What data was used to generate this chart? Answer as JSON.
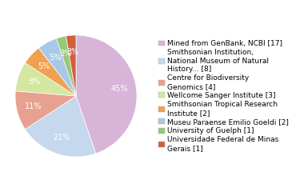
{
  "labels": [
    "Mined from GenBank, NCBI [17]",
    "Smithsonian Institution,\nNational Museum of Natural\nHistory... [8]",
    "Centre for Biodiversity\nGenomics [4]",
    "Wellcome Sanger Institute [3]",
    "Smithsonian Tropical Research\nInstitute [2]",
    "Museu Paraense Emilio Goeldi [2]",
    "University of Guelph [1]",
    "Universidade Federal de Minas\nGerais [1]"
  ],
  "values": [
    17,
    8,
    4,
    3,
    2,
    2,
    1,
    1
  ],
  "colors": [
    "#d8b4d8",
    "#c5d8ed",
    "#e8a090",
    "#d4e6a0",
    "#f0a050",
    "#a8c8e8",
    "#98c878",
    "#d06040"
  ],
  "startangle": 90,
  "background_color": "#ffffff",
  "text_color": "#000000",
  "legend_fontsize": 6.5,
  "pct_fontsize": 7
}
